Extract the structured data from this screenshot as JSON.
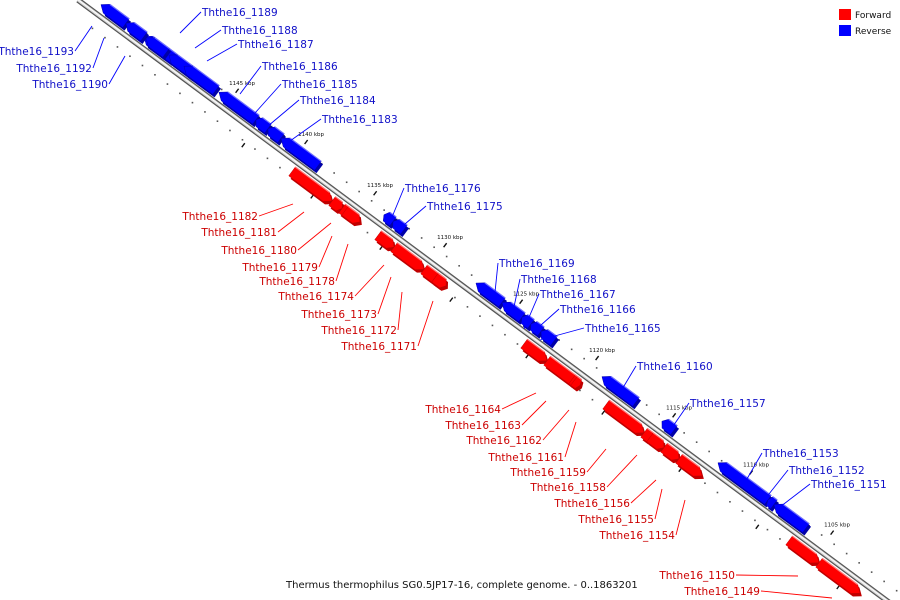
{
  "legend": {
    "forward": {
      "label": "Forward",
      "color": "#ff0000"
    },
    "reverse": {
      "label": "Reverse",
      "color": "#0000ff"
    }
  },
  "caption": "Thermus thermophilus SG0.5JP17-16, complete genome. - 0..1863201",
  "tick_labels": [
    "1145 kbp",
    "1140 kbp",
    "1135 kbp",
    "1130 kbp",
    "1125 kbp",
    "1120 kbp",
    "1115 kbp",
    "1110 kbp",
    "1105 kbp"
  ],
  "genes": [
    {
      "id": "Ththe16_1189",
      "strand": "reverse"
    },
    {
      "id": "Ththe16_1188",
      "strand": "reverse"
    },
    {
      "id": "Ththe16_1187",
      "strand": "reverse"
    },
    {
      "id": "Ththe16_1193",
      "strand": "reverse"
    },
    {
      "id": "Ththe16_1192",
      "strand": "reverse"
    },
    {
      "id": "Ththe16_1190",
      "strand": "reverse"
    },
    {
      "id": "Ththe16_1186",
      "strand": "reverse"
    },
    {
      "id": "Ththe16_1185",
      "strand": "reverse"
    },
    {
      "id": "Ththe16_1184",
      "strand": "reverse"
    },
    {
      "id": "Ththe16_1183",
      "strand": "reverse"
    },
    {
      "id": "Ththe16_1176",
      "strand": "reverse"
    },
    {
      "id": "Ththe16_1175",
      "strand": "reverse"
    },
    {
      "id": "Ththe16_1182",
      "strand": "forward"
    },
    {
      "id": "Ththe16_1181",
      "strand": "forward"
    },
    {
      "id": "Ththe16_1180",
      "strand": "forward"
    },
    {
      "id": "Ththe16_1179",
      "strand": "forward"
    },
    {
      "id": "Ththe16_1178",
      "strand": "forward"
    },
    {
      "id": "Ththe16_1174",
      "strand": "forward"
    },
    {
      "id": "Ththe16_1173",
      "strand": "forward"
    },
    {
      "id": "Ththe16_1172",
      "strand": "forward"
    },
    {
      "id": "Ththe16_1171",
      "strand": "forward"
    },
    {
      "id": "Ththe16_1169",
      "strand": "reverse"
    },
    {
      "id": "Ththe16_1168",
      "strand": "reverse"
    },
    {
      "id": "Ththe16_1167",
      "strand": "reverse"
    },
    {
      "id": "Ththe16_1166",
      "strand": "reverse"
    },
    {
      "id": "Ththe16_1165",
      "strand": "reverse"
    },
    {
      "id": "Ththe16_1160",
      "strand": "reverse"
    },
    {
      "id": "Ththe16_1157",
      "strand": "reverse"
    },
    {
      "id": "Ththe16_1164",
      "strand": "forward"
    },
    {
      "id": "Ththe16_1163",
      "strand": "forward"
    },
    {
      "id": "Ththe16_1162",
      "strand": "forward"
    },
    {
      "id": "Ththe16_1161",
      "strand": "forward"
    },
    {
      "id": "Ththe16_1159",
      "strand": "forward"
    },
    {
      "id": "Ththe16_1158",
      "strand": "forward"
    },
    {
      "id": "Ththe16_1156",
      "strand": "forward"
    },
    {
      "id": "Ththe16_1155",
      "strand": "forward"
    },
    {
      "id": "Ththe16_1154",
      "strand": "forward"
    },
    {
      "id": "Ththe16_1153",
      "strand": "reverse"
    },
    {
      "id": "Ththe16_1152",
      "strand": "reverse"
    },
    {
      "id": "Ththe16_1151",
      "strand": "reverse"
    },
    {
      "id": "Ththe16_1150",
      "strand": "forward"
    },
    {
      "id": "Ththe16_1149",
      "strand": "forward"
    }
  ]
}
